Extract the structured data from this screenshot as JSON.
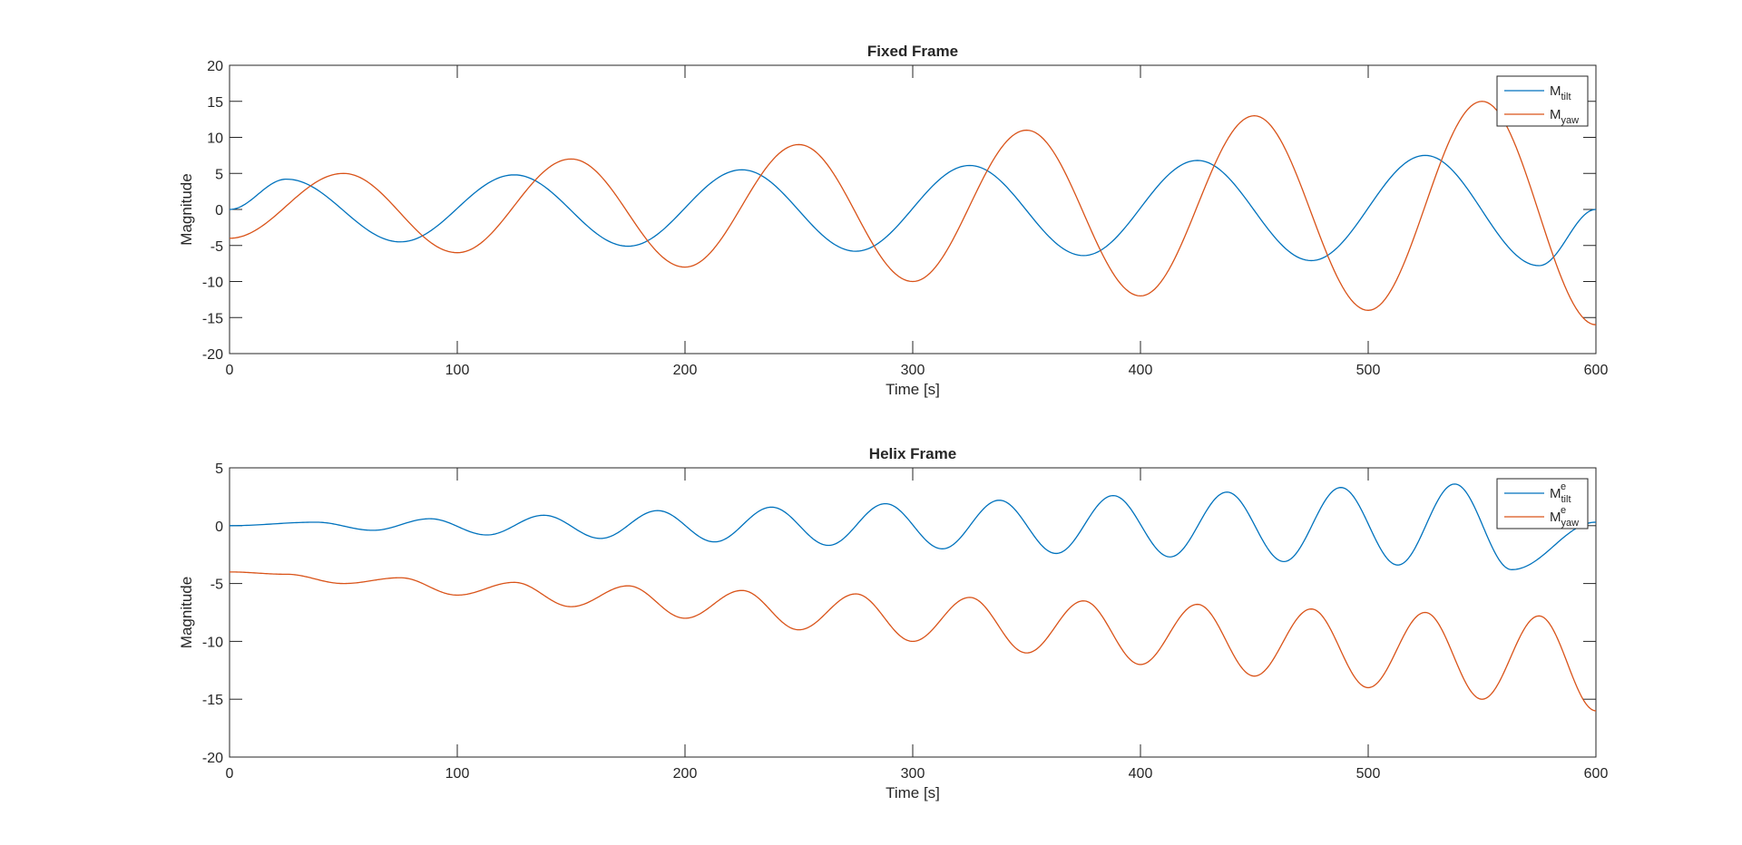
{
  "figure": {
    "background": "#ffffff",
    "axes_color": "#262626"
  },
  "chart_data": [
    {
      "type": "line",
      "title": "Fixed Frame",
      "xlabel": "Time [s]",
      "ylabel": "Magnitude",
      "xlim": [
        0,
        600
      ],
      "ylim": [
        -20,
        20
      ],
      "xticks": [
        0,
        100,
        200,
        300,
        400,
        500,
        600
      ],
      "xtick_labels": [
        "0",
        "100",
        "200",
        "300",
        "400",
        "500",
        "600"
      ],
      "yticks": [
        20,
        15,
        10,
        5,
        0,
        -5,
        -10,
        -15,
        -20
      ],
      "ytick_labels": [
        "20",
        "15",
        "10",
        "5",
        "0",
        "-5",
        "-10",
        "-15",
        "-20"
      ],
      "grid": false,
      "legend_position": "top-right",
      "series": [
        {
          "name": "M",
          "name_sub": "tilt",
          "name_sup": "",
          "color": "#0072BD",
          "x": [
            0,
            25,
            75,
            125,
            175,
            225,
            275,
            325,
            375,
            425,
            475,
            525,
            575,
            600
          ],
          "y": [
            0,
            4.2,
            -4.5,
            4.8,
            -5.1,
            5.5,
            -5.8,
            6.1,
            -6.4,
            6.8,
            -7.1,
            7.5,
            -7.8,
            0
          ]
        },
        {
          "name": "M",
          "name_sub": "yaw",
          "name_sup": "",
          "color": "#D95319",
          "x": [
            0,
            50,
            100,
            150,
            200,
            250,
            300,
            350,
            400,
            450,
            500,
            550,
            600
          ],
          "y": [
            -4,
            5,
            -6,
            7,
            -8,
            9,
            -10,
            11,
            -12,
            13,
            -14,
            15,
            -16
          ]
        }
      ]
    },
    {
      "type": "line",
      "title": "Helix Frame",
      "xlabel": "Time [s]",
      "ylabel": "Magnitude",
      "xlim": [
        0,
        600
      ],
      "ylim": [
        -20,
        5
      ],
      "xticks": [
        0,
        100,
        200,
        300,
        400,
        500,
        600
      ],
      "xtick_labels": [
        "0",
        "100",
        "200",
        "300",
        "400",
        "500",
        "600"
      ],
      "yticks": [
        5,
        0,
        -5,
        -10,
        -15,
        -20
      ],
      "ytick_labels": [
        "5",
        "0",
        "-5",
        "-10",
        "-15",
        "-20"
      ],
      "grid": false,
      "legend_position": "top-right",
      "series": [
        {
          "name": "M",
          "name_sub": "tilt",
          "name_sup": "e",
          "color": "#0072BD",
          "x": [
            0,
            38,
            63,
            88,
            113,
            138,
            163,
            188,
            213,
            238,
            263,
            288,
            313,
            338,
            363,
            388,
            413,
            438,
            463,
            488,
            513,
            538,
            563,
            600
          ],
          "y": [
            0,
            0.3,
            -0.4,
            0.6,
            -0.8,
            0.9,
            -1.1,
            1.3,
            -1.4,
            1.6,
            -1.7,
            1.9,
            -2.0,
            2.2,
            -2.4,
            2.6,
            -2.7,
            2.9,
            -3.1,
            3.3,
            -3.4,
            3.6,
            -3.8,
            0.3
          ]
        },
        {
          "name": "M",
          "name_sub": "yaw",
          "name_sup": "e",
          "color": "#D95319",
          "x": [
            0,
            25,
            50,
            75,
            100,
            125,
            150,
            175,
            200,
            225,
            250,
            275,
            300,
            325,
            350,
            375,
            400,
            425,
            450,
            475,
            500,
            525,
            550,
            575,
            600
          ],
          "y": [
            -4,
            -4.2,
            -5,
            -4.5,
            -6,
            -4.9,
            -7,
            -5.2,
            -8,
            -5.6,
            -9,
            -5.9,
            -10,
            -6.2,
            -11,
            -6.5,
            -12,
            -6.8,
            -13,
            -7.2,
            -14,
            -7.5,
            -15,
            -7.8,
            -16
          ]
        }
      ]
    }
  ]
}
